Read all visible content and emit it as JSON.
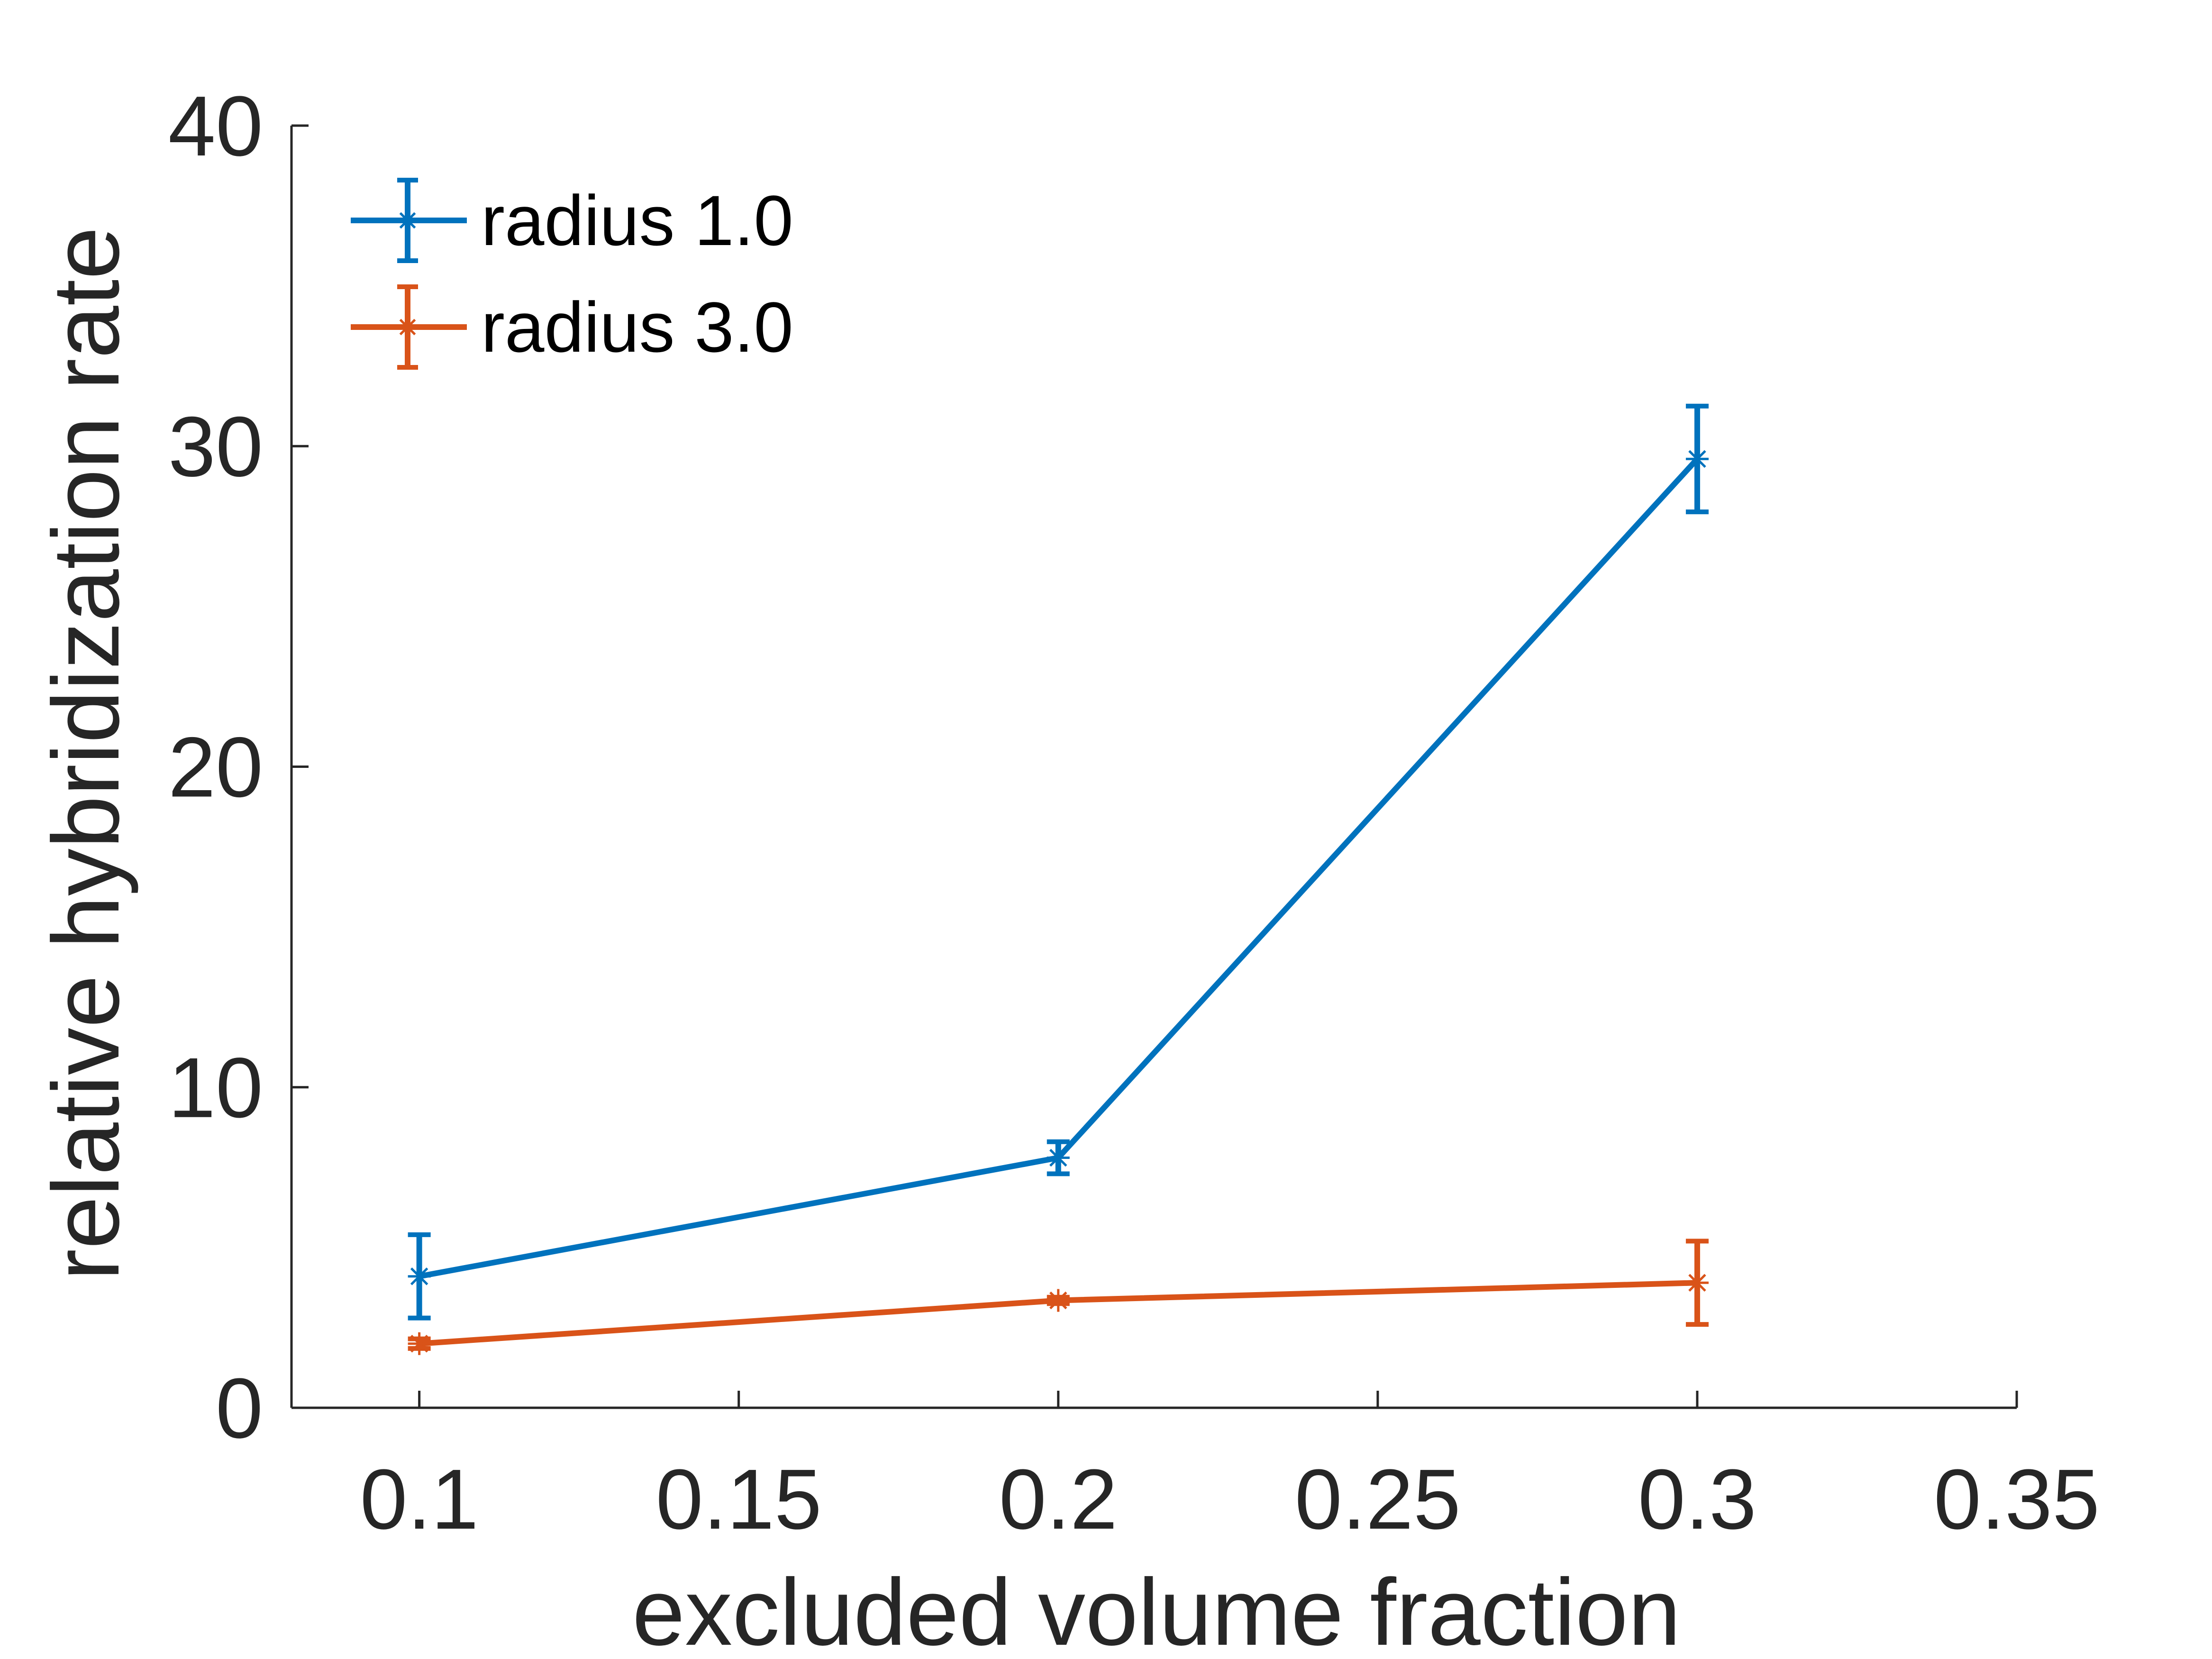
{
  "chart_data": {
    "type": "line",
    "xlabel": "excluded volume fraction",
    "ylabel": "relative hybridization rate",
    "xlim": [
      0.08,
      0.35
    ],
    "ylim": [
      0,
      40
    ],
    "xticks": [
      0.1,
      0.15,
      0.2,
      0.25,
      0.3,
      0.35
    ],
    "xtick_labels": [
      "0.1",
      "0.15",
      "0.2",
      "0.25",
      "0.3",
      "0.35"
    ],
    "yticks": [
      0,
      10,
      20,
      30,
      40
    ],
    "ytick_labels": [
      "0",
      "10",
      "20",
      "30",
      "40"
    ],
    "grid": false,
    "legend_position": "top-left",
    "series": [
      {
        "name": "radius 1.0",
        "color": "#0072BD",
        "marker": "star",
        "x": [
          0.1,
          0.2,
          0.3
        ],
        "y": [
          4.1,
          7.8,
          29.6
        ],
        "err": [
          1.3,
          0.5,
          1.65
        ]
      },
      {
        "name": "radius 3.0",
        "color": "#D95319",
        "marker": "star",
        "x": [
          0.1,
          0.2,
          0.3
        ],
        "y": [
          2.0,
          3.35,
          3.9
        ],
        "err": [
          0.15,
          0.1,
          1.3
        ]
      }
    ]
  }
}
